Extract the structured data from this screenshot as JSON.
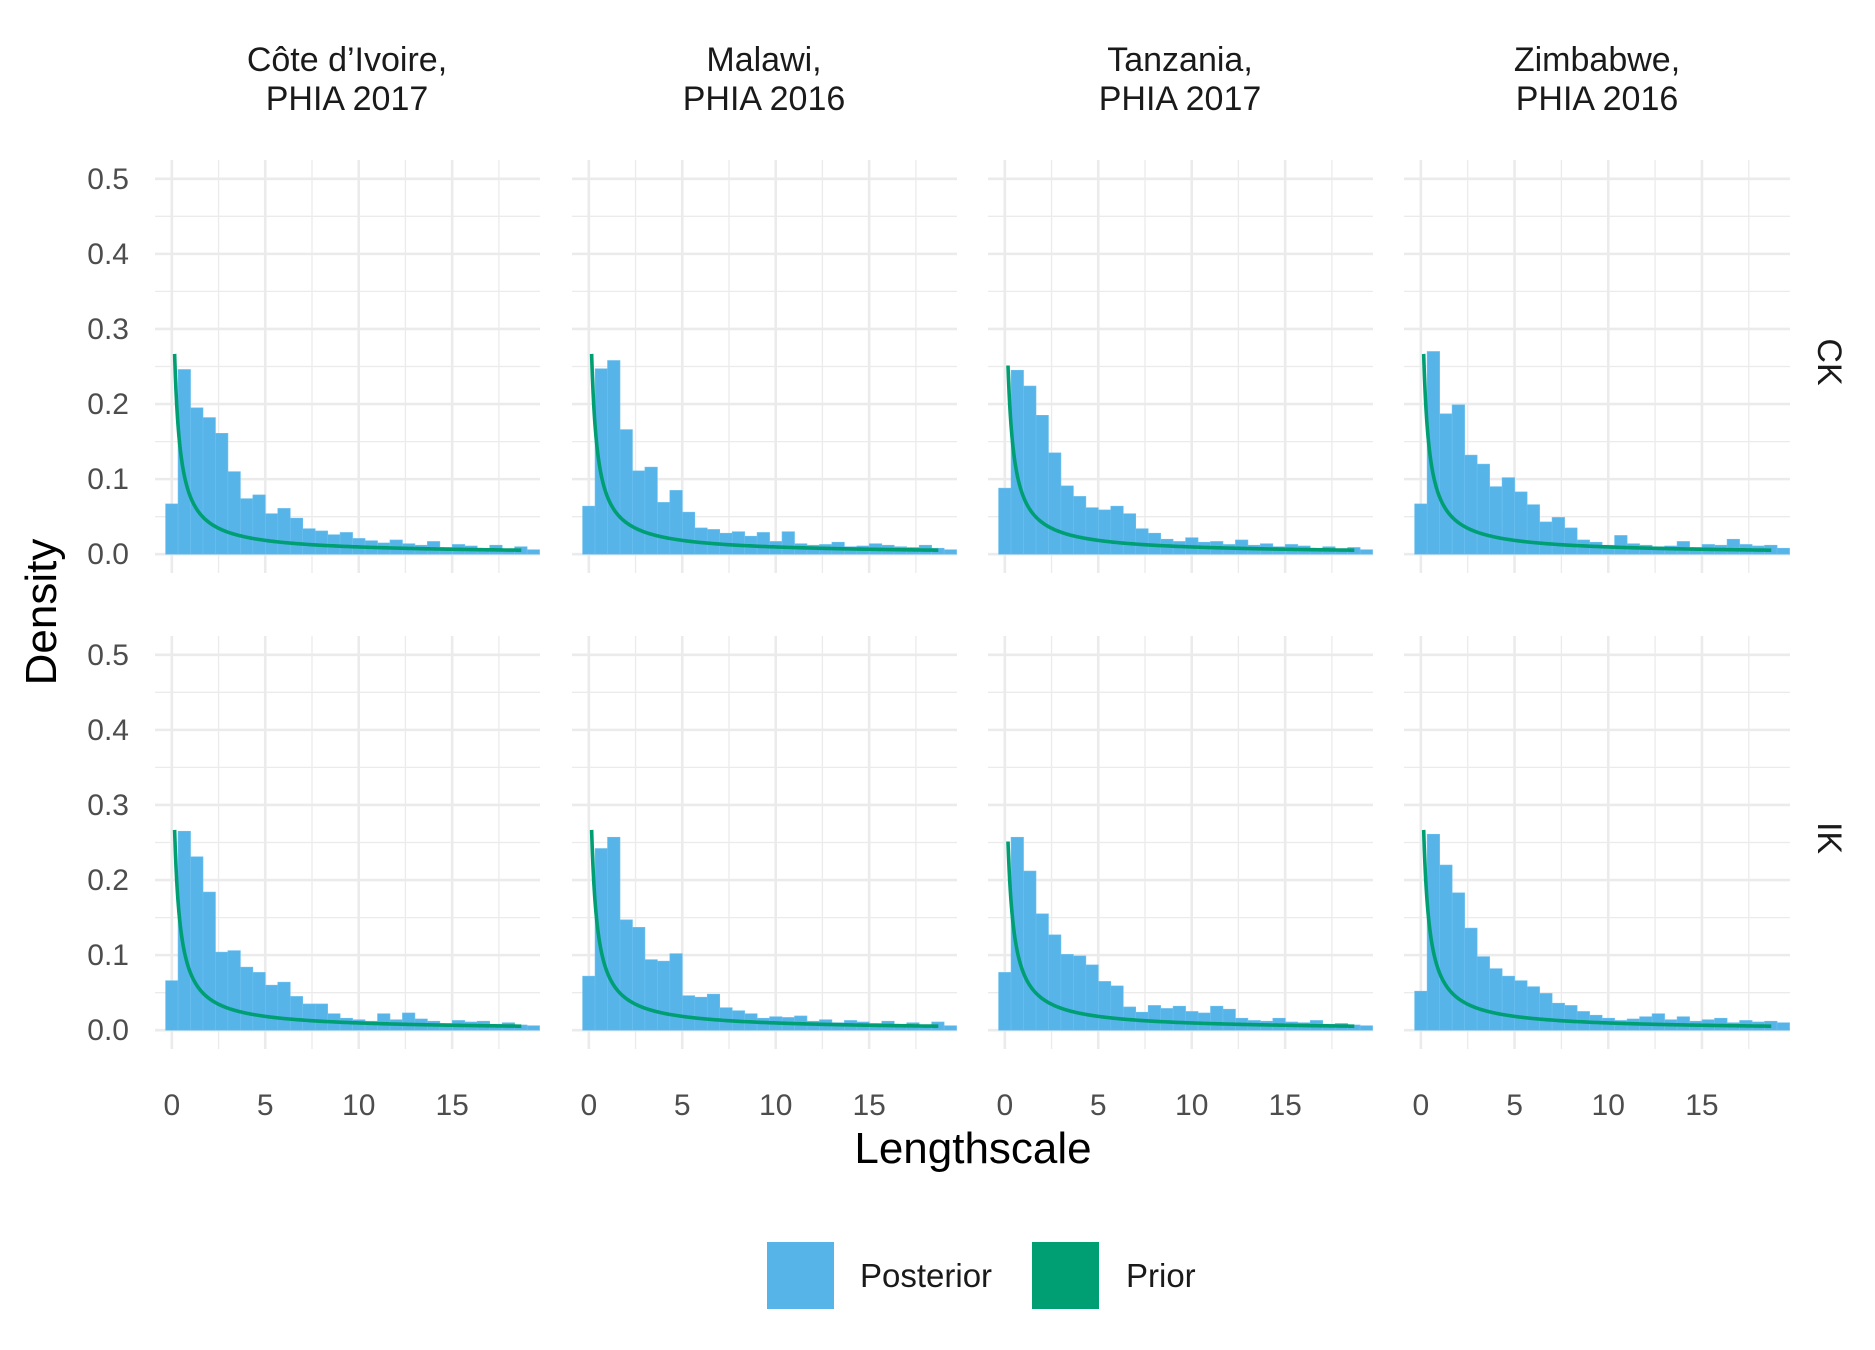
{
  "chart_data": {
    "type": "histogram-facet",
    "xlabel": "Lengthscale",
    "ylabel": "Density",
    "x_ticks": [
      0,
      5,
      10,
      15
    ],
    "y_ticks": [
      0.0,
      0.1,
      0.2,
      0.3,
      0.4,
      0.5
    ],
    "y_tick_labels": [
      "0.0",
      "0.1",
      "0.2",
      "0.3",
      "0.4",
      "0.5"
    ],
    "xlim": [
      -0.9,
      19.7
    ],
    "ylim": [
      -0.025,
      0.525
    ],
    "bin_width": 0.667,
    "bin_start": -0.333,
    "columns": [
      {
        "line1": "Côte d’Ivoire,",
        "line2": "PHIA 2017"
      },
      {
        "line1": "Malawi,",
        "line2": "PHIA 2016"
      },
      {
        "line1": "Tanzania,",
        "line2": "PHIA 2017"
      },
      {
        "line1": "Zimbabwe,",
        "line2": "PHIA 2016"
      }
    ],
    "rows": [
      "CK",
      "IK"
    ],
    "legend": {
      "position": "bottom",
      "entries": [
        {
          "label": "Posterior",
          "color": "#56B4E9"
        },
        {
          "label": "Prior",
          "color": "#009E73"
        }
      ]
    },
    "prior_scale": 0.16,
    "prior_x_start": [
      0.15,
      0.15,
      0.17,
      0.15
    ],
    "prior_x_end": 18.7,
    "posterior": {
      "CK": [
        [
          0.067,
          0.246,
          0.195,
          0.182,
          0.161,
          0.11,
          0.074,
          0.079,
          0.054,
          0.061,
          0.048,
          0.034,
          0.031,
          0.026,
          0.029,
          0.021,
          0.018,
          0.015,
          0.019,
          0.014,
          0.012,
          0.017,
          0.009,
          0.013,
          0.011,
          0.008,
          0.012,
          0.007,
          0.01,
          0.006
        ],
        [
          0.064,
          0.247,
          0.258,
          0.166,
          0.111,
          0.116,
          0.069,
          0.085,
          0.056,
          0.035,
          0.033,
          0.028,
          0.03,
          0.024,
          0.029,
          0.017,
          0.03,
          0.014,
          0.012,
          0.013,
          0.016,
          0.01,
          0.011,
          0.014,
          0.012,
          0.01,
          0.009,
          0.012,
          0.008,
          0.006
        ],
        [
          0.088,
          0.245,
          0.224,
          0.185,
          0.135,
          0.091,
          0.077,
          0.062,
          0.059,
          0.064,
          0.054,
          0.034,
          0.028,
          0.02,
          0.017,
          0.022,
          0.016,
          0.017,
          0.013,
          0.019,
          0.012,
          0.014,
          0.01,
          0.013,
          0.011,
          0.008,
          0.01,
          0.007,
          0.009,
          0.006
        ],
        [
          0.067,
          0.27,
          0.187,
          0.199,
          0.132,
          0.12,
          0.09,
          0.102,
          0.083,
          0.066,
          0.043,
          0.049,
          0.035,
          0.019,
          0.016,
          0.012,
          0.025,
          0.014,
          0.012,
          0.01,
          0.011,
          0.017,
          0.009,
          0.013,
          0.012,
          0.02,
          0.013,
          0.011,
          0.012,
          0.008
        ]
      ],
      "IK": [
        [
          0.066,
          0.265,
          0.231,
          0.184,
          0.104,
          0.106,
          0.084,
          0.077,
          0.06,
          0.064,
          0.045,
          0.035,
          0.035,
          0.022,
          0.016,
          0.014,
          0.012,
          0.022,
          0.014,
          0.023,
          0.015,
          0.012,
          0.009,
          0.013,
          0.011,
          0.012,
          0.008,
          0.01,
          0.007,
          0.006
        ],
        [
          0.072,
          0.242,
          0.257,
          0.147,
          0.137,
          0.094,
          0.092,
          0.102,
          0.046,
          0.044,
          0.048,
          0.03,
          0.026,
          0.022,
          0.016,
          0.018,
          0.017,
          0.019,
          0.012,
          0.014,
          0.01,
          0.013,
          0.011,
          0.009,
          0.012,
          0.008,
          0.01,
          0.007,
          0.011,
          0.006
        ],
        [
          0.077,
          0.257,
          0.212,
          0.155,
          0.127,
          0.101,
          0.099,
          0.087,
          0.065,
          0.059,
          0.031,
          0.024,
          0.033,
          0.029,
          0.032,
          0.025,
          0.023,
          0.032,
          0.028,
          0.016,
          0.013,
          0.012,
          0.016,
          0.011,
          0.01,
          0.013,
          0.008,
          0.009,
          0.007,
          0.006
        ],
        [
          0.052,
          0.261,
          0.22,
          0.183,
          0.136,
          0.098,
          0.082,
          0.072,
          0.066,
          0.058,
          0.049,
          0.036,
          0.033,
          0.025,
          0.02,
          0.016,
          0.013,
          0.015,
          0.018,
          0.022,
          0.014,
          0.018,
          0.012,
          0.014,
          0.016,
          0.01,
          0.013,
          0.011,
          0.012,
          0.01
        ]
      ]
    }
  }
}
